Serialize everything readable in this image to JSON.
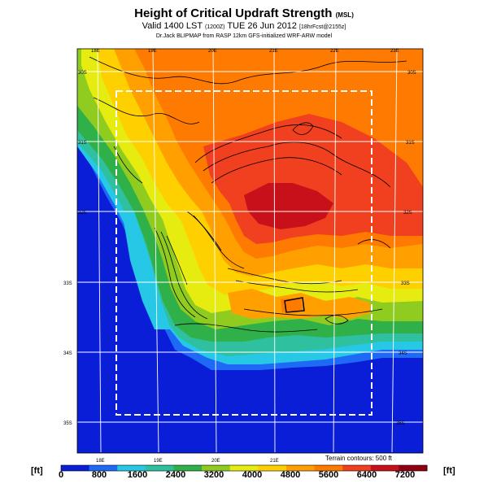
{
  "title": "Height of Critical Updraft Strength",
  "title_unit": "(MSL)",
  "valid_line": "Valid 1400 LST",
  "valid_utc": "(1200Z)",
  "valid_date": "TUE 26 Jun 2012",
  "valid_extra": "[18hrFcst@2155z]",
  "model_line": "Dr.Jack BLIPMAP from RASP 12km GFS-initialized WRF-ARW model",
  "terrain_note": "Terrain contours: 500 ft",
  "unit_label": "[ft]",
  "colorbar": {
    "ticks": [
      "0",
      "800",
      "1600",
      "2400",
      "3200",
      "4000",
      "4800",
      "5600",
      "6400",
      "7200"
    ],
    "colors": [
      "#0a1ed8",
      "#1f6af5",
      "#26c8e6",
      "#2fc0a0",
      "#30b048",
      "#90cc20",
      "#e6ec10",
      "#ffd000",
      "#ffa000",
      "#ff7a00",
      "#f04020",
      "#c8101a",
      "#900010"
    ]
  },
  "grid": {
    "lon_labels": [
      "18E",
      "19E",
      "20E",
      "21E",
      "22E",
      "23E"
    ],
    "lat_labels": [
      "30S",
      "31S",
      "32S",
      "33S",
      "34S",
      "35S"
    ]
  }
}
